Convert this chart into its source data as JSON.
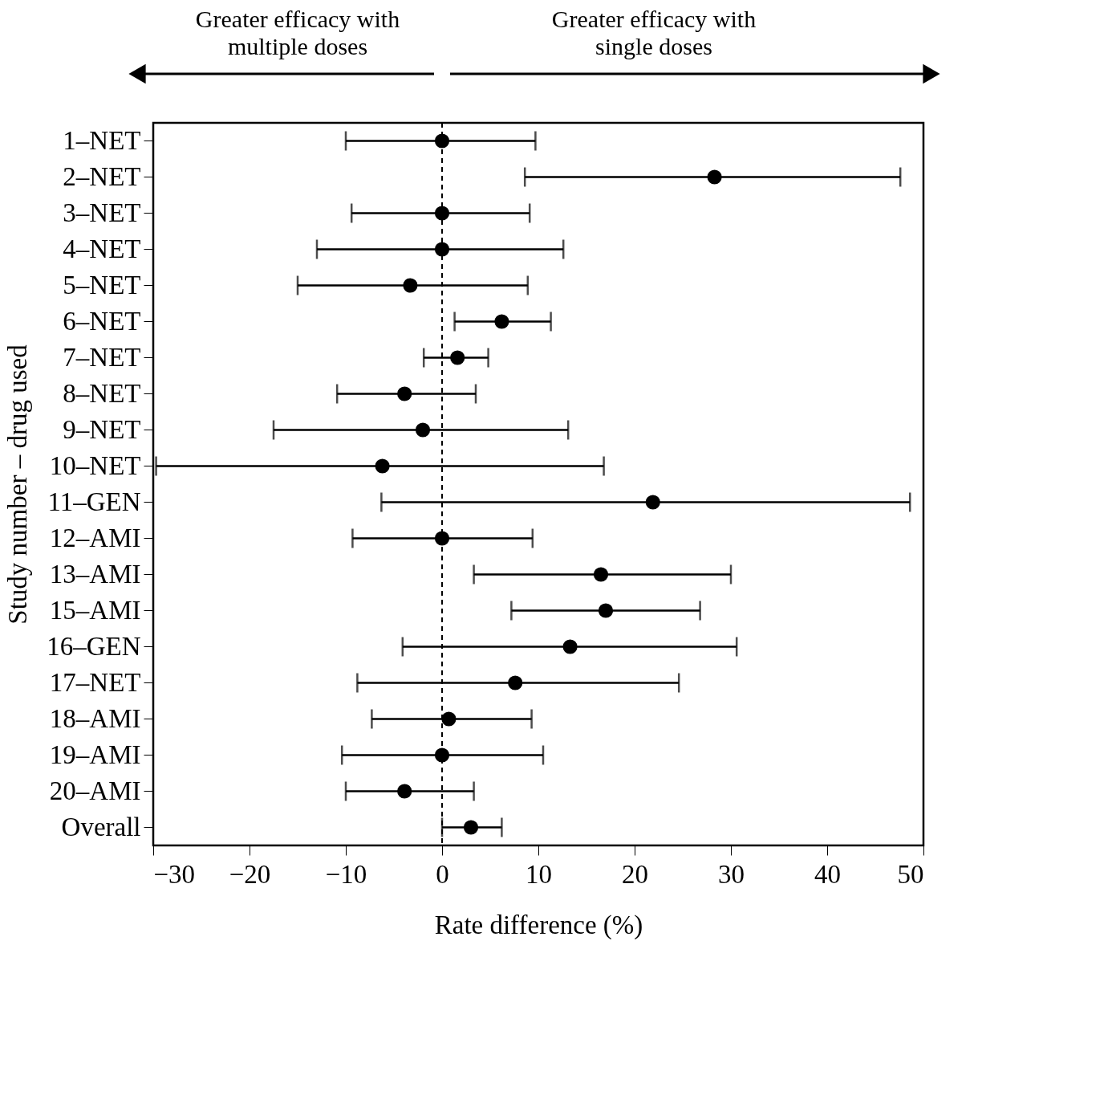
{
  "chart_data": {
    "type": "scatter",
    "xlabel": "Rate difference (%)",
    "ylabel": "Study number – drug used",
    "annotations": [
      "Greater efficacy with\nmultiple doses",
      "Greater efficacy with\nsingle doses"
    ],
    "categories": [
      "1–NET",
      "2–NET",
      "3–NET",
      "4–NET",
      "5–NET",
      "6–NET",
      "7–NET",
      "8–NET",
      "9–NET",
      "10–NET",
      "11–GEN",
      "12–AMI",
      "13–AMI",
      "15–AMI",
      "16–GEN",
      "17–NET",
      "18–AMI",
      "19–AMI",
      "20–AMI",
      "Overall"
    ],
    "series": [
      {
        "color": "#000000",
        "values": [
          0,
          28.3,
          0,
          0,
          -3.3,
          6.2,
          1.6,
          -3.9,
          -2.0,
          -6.2,
          21.9,
          0,
          16.5,
          17.0,
          13.3,
          7.6,
          0.7,
          0,
          -3.9,
          3.0
        ],
        "errors": [
          [
            -10,
            9.7
          ],
          [
            8.6,
            47.6
          ],
          [
            -9.4,
            9.1
          ],
          [
            -13,
            12.6
          ],
          [
            -15,
            8.9
          ],
          [
            1.3,
            11.3
          ],
          [
            -1.9,
            4.8
          ],
          [
            -10.9,
            3.5
          ],
          [
            -17.5,
            13.1
          ],
          [
            -29.7,
            16.8
          ],
          [
            -6.3,
            48.6
          ],
          [
            -9.3,
            9.4
          ],
          [
            3.3,
            30
          ],
          [
            7.2,
            26.8
          ],
          [
            -4.1,
            30.6
          ],
          [
            -8.8,
            24.6
          ],
          [
            -7.3,
            9.3
          ],
          [
            -10.4,
            10.5
          ],
          [
            -10,
            3.3
          ],
          [
            0,
            6.2
          ]
        ]
      }
    ],
    "orientation": "horizontal",
    "marker": "circle",
    "grid": false,
    "legend": false,
    "xlim": [
      -30,
      50
    ],
    "xticks": [
      -30,
      -20,
      -10,
      0,
      10,
      20,
      30,
      40,
      50
    ],
    "ref_lines": [
      {
        "axis": "x",
        "value": 0,
        "line_style": "dashed",
        "color": "#000000"
      }
    ]
  }
}
